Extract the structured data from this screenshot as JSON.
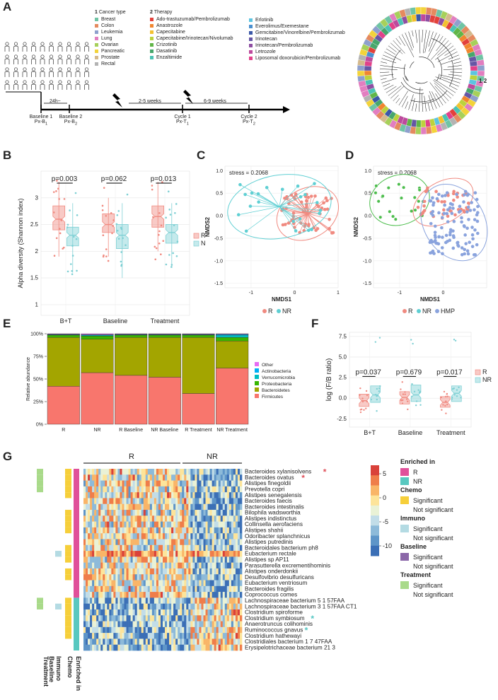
{
  "panels": {
    "A": {
      "letter": "A",
      "legend1_num": "1",
      "legend1_title": "Cancer type",
      "cancer_types": [
        {
          "label": "Breast",
          "color": "#6fc4a4"
        },
        {
          "label": "Colon",
          "color": "#e58a5f"
        },
        {
          "label": "Leukemia",
          "color": "#8ea0cd"
        },
        {
          "label": "Lung",
          "color": "#e27ec0"
        },
        {
          "label": "Ovarian",
          "color": "#a7d05a"
        },
        {
          "label": "Pancreatic",
          "color": "#f3d33a"
        },
        {
          "label": "Prostate",
          "color": "#d4b98c"
        },
        {
          "label": "Rectal",
          "color": "#b3b3b3"
        }
      ],
      "legend2_num": "2",
      "legend2_title": "Therapy",
      "therapies_col1": [
        {
          "label": "Ado-trastuzumab/Pembrolizumab",
          "color": "#e3413b"
        },
        {
          "label": "Anastrozole",
          "color": "#f1862f"
        },
        {
          "label": "Capecitabine",
          "color": "#f3c130"
        },
        {
          "label": "Capecitabine/Irinotecan/Nivolumab",
          "color": "#bcd23d"
        },
        {
          "label": "Crizotinib",
          "color": "#61b548"
        },
        {
          "label": "Dasatinib",
          "color": "#47a76c"
        },
        {
          "label": "Enzaltimide",
          "color": "#4cc3b4"
        }
      ],
      "therapies_col2": [
        {
          "label": "Erlotinib",
          "color": "#5cc4e1"
        },
        {
          "label": "Everolimus/Exemestane",
          "color": "#4a90cf"
        },
        {
          "label": "Gemcitabine/Vinorelbine/Pembrolizumab",
          "color": "#3b58a8"
        },
        {
          "label": "Irinotecan",
          "color": "#6556a5"
        },
        {
          "label": "Irinotecan/Pembrolizumab",
          "color": "#8e4ea2"
        },
        {
          "label": "Letrozole",
          "color": "#bd4a9d"
        },
        {
          "label": "Liposomal doxorubicin/Pembrolizumab",
          "color": "#e1418a"
        }
      ],
      "timeline": {
        "gap1": "24h~",
        "gap2": "2-5 weeks",
        "gap3": "6-9 weeks",
        "points": [
          {
            "line1": "Baseline 1",
            "line2": "Px-B",
            "sub": "1"
          },
          {
            "line1": "Baseline 2",
            "line2": "Px-B",
            "sub": "2"
          },
          {
            "line1": "Cycle 1",
            "line2": "Px-T",
            "sub": "1"
          },
          {
            "line1": "Cycle 2",
            "line2": "Px-T",
            "sub": "2"
          }
        ]
      },
      "ring_key": [
        "1",
        "2"
      ]
    },
    "B": {
      "letter": "B",
      "chart_data": {
        "type": "box",
        "title": "",
        "ylabel": "Alpha diversity (Shannon index)",
        "categories": [
          "B+T",
          "Baseline",
          "Treatment"
        ],
        "ylim": [
          0.8,
          3.5
        ],
        "yticks": [
          1.0,
          1.5,
          2.0,
          2.5,
          3.0
        ],
        "series": [
          {
            "name": "R",
            "color": "#f08a80",
            "medians": [
              2.6,
              2.5,
              2.65
            ],
            "q1": [
              2.4,
              2.35,
              2.45
            ],
            "q3": [
              2.85,
              2.7,
              2.85
            ],
            "min": [
              1.9,
              1.9,
              2.0
            ],
            "max": [
              3.3,
              3.0,
              3.3
            ]
          },
          {
            "name": "NR",
            "color": "#7fd0d4",
            "medians": [
              2.3,
              2.3,
              2.35
            ],
            "q1": [
              2.1,
              2.05,
              2.15
            ],
            "q3": [
              2.45,
              2.5,
              2.5
            ],
            "min": [
              1.6,
              1.5,
              1.7
            ],
            "max": [
              2.9,
              2.9,
              2.9
            ]
          }
        ],
        "pvalues": [
          "p=0.003",
          "p=0.062",
          "p=0.013"
        ],
        "legend": [
          "R",
          "NR"
        ]
      }
    },
    "C": {
      "letter": "C",
      "chart_data": {
        "type": "scatter",
        "xlabel": "NMDS1",
        "ylabel": "NMDS2",
        "stress": "stress = 0.2068",
        "xlim": [
          -1.6,
          1.0
        ],
        "ylim": [
          -1.6,
          1.1
        ],
        "xticks": [
          "-1",
          "0",
          "1"
        ],
        "yticks": [
          "1.0",
          "0.5",
          "0.0",
          "-0.5",
          "-1.0",
          "-1.5"
        ],
        "legend": [
          "R",
          "NR"
        ]
      }
    },
    "D": {
      "letter": "D",
      "chart_data": {
        "type": "scatter",
        "xlabel": "NMDS1",
        "ylabel": "NMDS2",
        "stress": "stress = 0.2068",
        "xticks": [
          "-1",
          "0"
        ],
        "yticks": [
          "1.0",
          "0.5",
          "0.0",
          "-0.5",
          "-1.0",
          "-1.5"
        ],
        "legend": [
          "R",
          "NR",
          "HMP"
        ]
      }
    },
    "E": {
      "letter": "E",
      "chart_data": {
        "type": "bar",
        "stacked": true,
        "ylabel": "Relative abundance",
        "categories": [
          "R",
          "NR",
          "R  Baseline",
          "NR  Baseline",
          "R  Treatment",
          "NR  Treatment"
        ],
        "yticks": [
          "0%",
          "25%",
          "50%",
          "75%",
          "100%"
        ],
        "series": [
          {
            "name": "Firmicutes",
            "color": "#f8766d",
            "values": [
              42,
              57,
              54,
              52,
              34,
              62
            ]
          },
          {
            "name": "Bacteroidetes",
            "color": "#a3a500",
            "values": [
              54,
              37,
              42,
              44,
              62,
              30
            ]
          },
          {
            "name": "Proteobacteria",
            "color": "#39b600",
            "values": [
              2.5,
              3.5,
              2.5,
              2.5,
              2.5,
              4
            ]
          },
          {
            "name": "Verrucomicrobia",
            "color": "#00bfc4",
            "values": [
              0.5,
              1,
              0.5,
              0.5,
              0.5,
              2.5
            ]
          },
          {
            "name": "Actinobacteria",
            "color": "#00b0f6",
            "values": [
              0.5,
              0.5,
              0.5,
              0.5,
              0.5,
              1
            ]
          },
          {
            "name": "Other",
            "color": "#e76bf3",
            "values": [
              0.5,
              1,
              0.5,
              0.5,
              0.5,
              0.5
            ]
          }
        ],
        "legend_order": [
          "Other",
          "Actinobacteria",
          "Verrucomicrobia",
          "Proteobacteria",
          "Bacteroidetes",
          "Firmicutes"
        ]
      }
    },
    "F": {
      "letter": "F",
      "chart_data": {
        "type": "box",
        "ylabel": "log (F/B ratio)",
        "categories": [
          "B+T",
          "Baseline",
          "Treatment"
        ],
        "ylim": [
          -3.5,
          8
        ],
        "yticks": [
          "7.5",
          "5.0",
          "2.5",
          "0.0",
          "-2.5"
        ],
        "series": [
          {
            "name": "R",
            "color": "#f08a80",
            "medians": [
              -0.3,
              0.1,
              -0.5
            ],
            "q1": [
              -1.0,
              -0.7,
              -1.1
            ],
            "q3": [
              0.5,
              0.8,
              0.2
            ]
          },
          {
            "name": "NR",
            "color": "#7fd0d4",
            "medians": [
              0.4,
              0.4,
              0.6
            ],
            "q1": [
              -0.5,
              -0.4,
              -0.4
            ],
            "q3": [
              1.5,
              1.6,
              1.5
            ]
          }
        ],
        "pvalues": [
          "p=0.037",
          "p=0.679",
          "p=0.017"
        ],
        "legend": [
          "R",
          "NR"
        ]
      }
    },
    "G": {
      "letter": "G",
      "groups": [
        "R",
        "NR"
      ],
      "scale_ticks": [
        "5",
        "0",
        "-5",
        "-10"
      ],
      "bottom_labels": [
        "Treatment",
        "Baseline",
        "Immuno",
        "Chemo",
        "Enriched in"
      ],
      "species": [
        {
          "name": "Bacteroides xylanisolvens",
          "star": "*",
          "star_color": "#e0505a"
        },
        {
          "name": "Bacteroides ovatus",
          "star": "*",
          "star_color": "#e0505a"
        },
        {
          "name": "Alistipes finegoldii"
        },
        {
          "name": "Prevotella copri"
        },
        {
          "name": "Alistipes senegalensis"
        },
        {
          "name": "Bacteroides faecis"
        },
        {
          "name": "Bacteroides intestinalis"
        },
        {
          "name": "Bilophila wadsworthia"
        },
        {
          "name": "Alistipes indistinctus"
        },
        {
          "name": "Collinsella aerofaciens"
        },
        {
          "name": "Alistipes shahii"
        },
        {
          "name": "Odoribacter splanchnicus"
        },
        {
          "name": "Alistipes putredinis"
        },
        {
          "name": "Bacteroidales bacterium ph8"
        },
        {
          "name": "Eubacterium rectale"
        },
        {
          "name": "Alistipes sp AP11"
        },
        {
          "name": "Parasutterella excrementihominis"
        },
        {
          "name": "Alistipes onderdonkii"
        },
        {
          "name": "Desulfovibrio desulfuricans"
        },
        {
          "name": "Eubacterium ventriosum"
        },
        {
          "name": "Bacteroides fragilis"
        },
        {
          "name": "Coprococcus comes"
        },
        {
          "name": "Lachnospiraceae bacterium 5 1 57FAA"
        },
        {
          "name": "Lachnospiraceae bacterium 3 1 57FAA CT1"
        },
        {
          "name": "Clostridium spiroforme"
        },
        {
          "name": "Clostridium symbiosum",
          "star": "*",
          "star_color": "#52c6c2"
        },
        {
          "name": "Anaerotruncus colihominis"
        },
        {
          "name": "Ruminococcus gnavus",
          "star": "*",
          "star_color": "#52c6c2"
        },
        {
          "name": "Clostridium hathewayi"
        },
        {
          "name": "Clostridiales bacterium 1 7 47FAA"
        },
        {
          "name": "Erysipelotrichaceae bacterium 21 3"
        }
      ],
      "legend": [
        {
          "title": "Enriched in",
          "items": [
            {
              "label": "R",
              "color": "#e0509a"
            },
            {
              "label": "NR",
              "color": "#58c8c0"
            }
          ]
        },
        {
          "title": "Chemo",
          "items": [
            {
              "label": "Significant",
              "color": "#f6cf3a"
            },
            {
              "label": "Not significant",
              "color": ""
            }
          ]
        },
        {
          "title": "Immuno",
          "items": [
            {
              "label": "Significant",
              "color": "#b4dbe3"
            },
            {
              "label": "Not significant",
              "color": ""
            }
          ]
        },
        {
          "title": "Baseline",
          "items": [
            {
              "label": "Significant",
              "color": "#8b67a8"
            },
            {
              "label": "Not significant",
              "color": ""
            }
          ]
        },
        {
          "title": "Treatment",
          "items": [
            {
              "label": "Significant",
              "color": "#a9da8a"
            },
            {
              "label": "Not significant",
              "color": ""
            }
          ]
        }
      ]
    }
  }
}
